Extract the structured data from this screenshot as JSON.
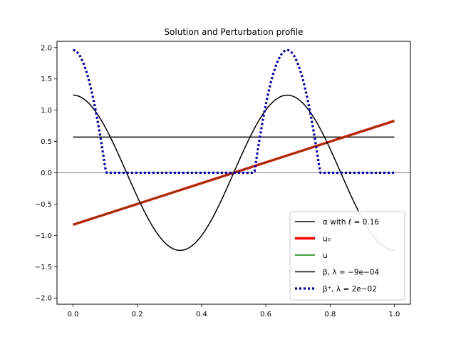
{
  "chart_data": {
    "type": "line",
    "title": "Solution and Perturbation profile",
    "xlabel": "",
    "ylabel": "",
    "xlim": [
      -0.05,
      1.05
    ],
    "ylim": [
      -2.1,
      2.1
    ],
    "x_ticks": [
      0.0,
      0.2,
      0.4,
      0.6,
      0.8,
      1.0
    ],
    "x_tick_labels": [
      "0.0",
      "0.2",
      "0.4",
      "0.6",
      "0.8",
      "1.0"
    ],
    "y_ticks": [
      2.0,
      1.5,
      1.0,
      0.5,
      0.0,
      -0.5,
      -1.0,
      -1.5,
      -2.0
    ],
    "y_tick_labels": [
      "2.0",
      "1.5",
      "1.0",
      "0.5",
      "0.0",
      "−0.5",
      "−1.0",
      "−1.5",
      "−2.0"
    ],
    "grid": false,
    "zero_line": true,
    "legend_position": "lower-right",
    "series": [
      {
        "key": "alpha",
        "legend_label": "α with ℓ = 0.16",
        "color": "#000000",
        "style": "solid",
        "kind": "constant",
        "x_range": [
          0.0,
          1.0
        ],
        "value": 0.57
      },
      {
        "key": "u0",
        "legend_label": "u₀",
        "color": "#ff0000",
        "style": "solid-thick",
        "kind": "linear",
        "x": [
          0.0,
          1.0
        ],
        "y": [
          -0.83,
          0.83
        ]
      },
      {
        "key": "u",
        "legend_label": "u",
        "color": "#008000",
        "style": "solid",
        "kind": "linear",
        "x": [
          0.0,
          1.0
        ],
        "y": [
          -0.83,
          0.83
        ]
      },
      {
        "key": "beta",
        "legend_label": "β, λ = −9e−04",
        "color": "#000000",
        "style": "solid",
        "kind": "cosine",
        "amplitude": 1.24,
        "frequency": 1.5,
        "x_range": [
          0.0,
          1.0
        ]
      },
      {
        "key": "beta_plus",
        "legend_label": "β⁺, λ = 2e−02",
        "color": "#0000cc",
        "style": "dotted",
        "kind": "positive-part",
        "amplitude": 1.96,
        "frequency": 1.5,
        "shift": 0.57,
        "x_range": [
          0.0,
          1.0
        ]
      }
    ]
  }
}
